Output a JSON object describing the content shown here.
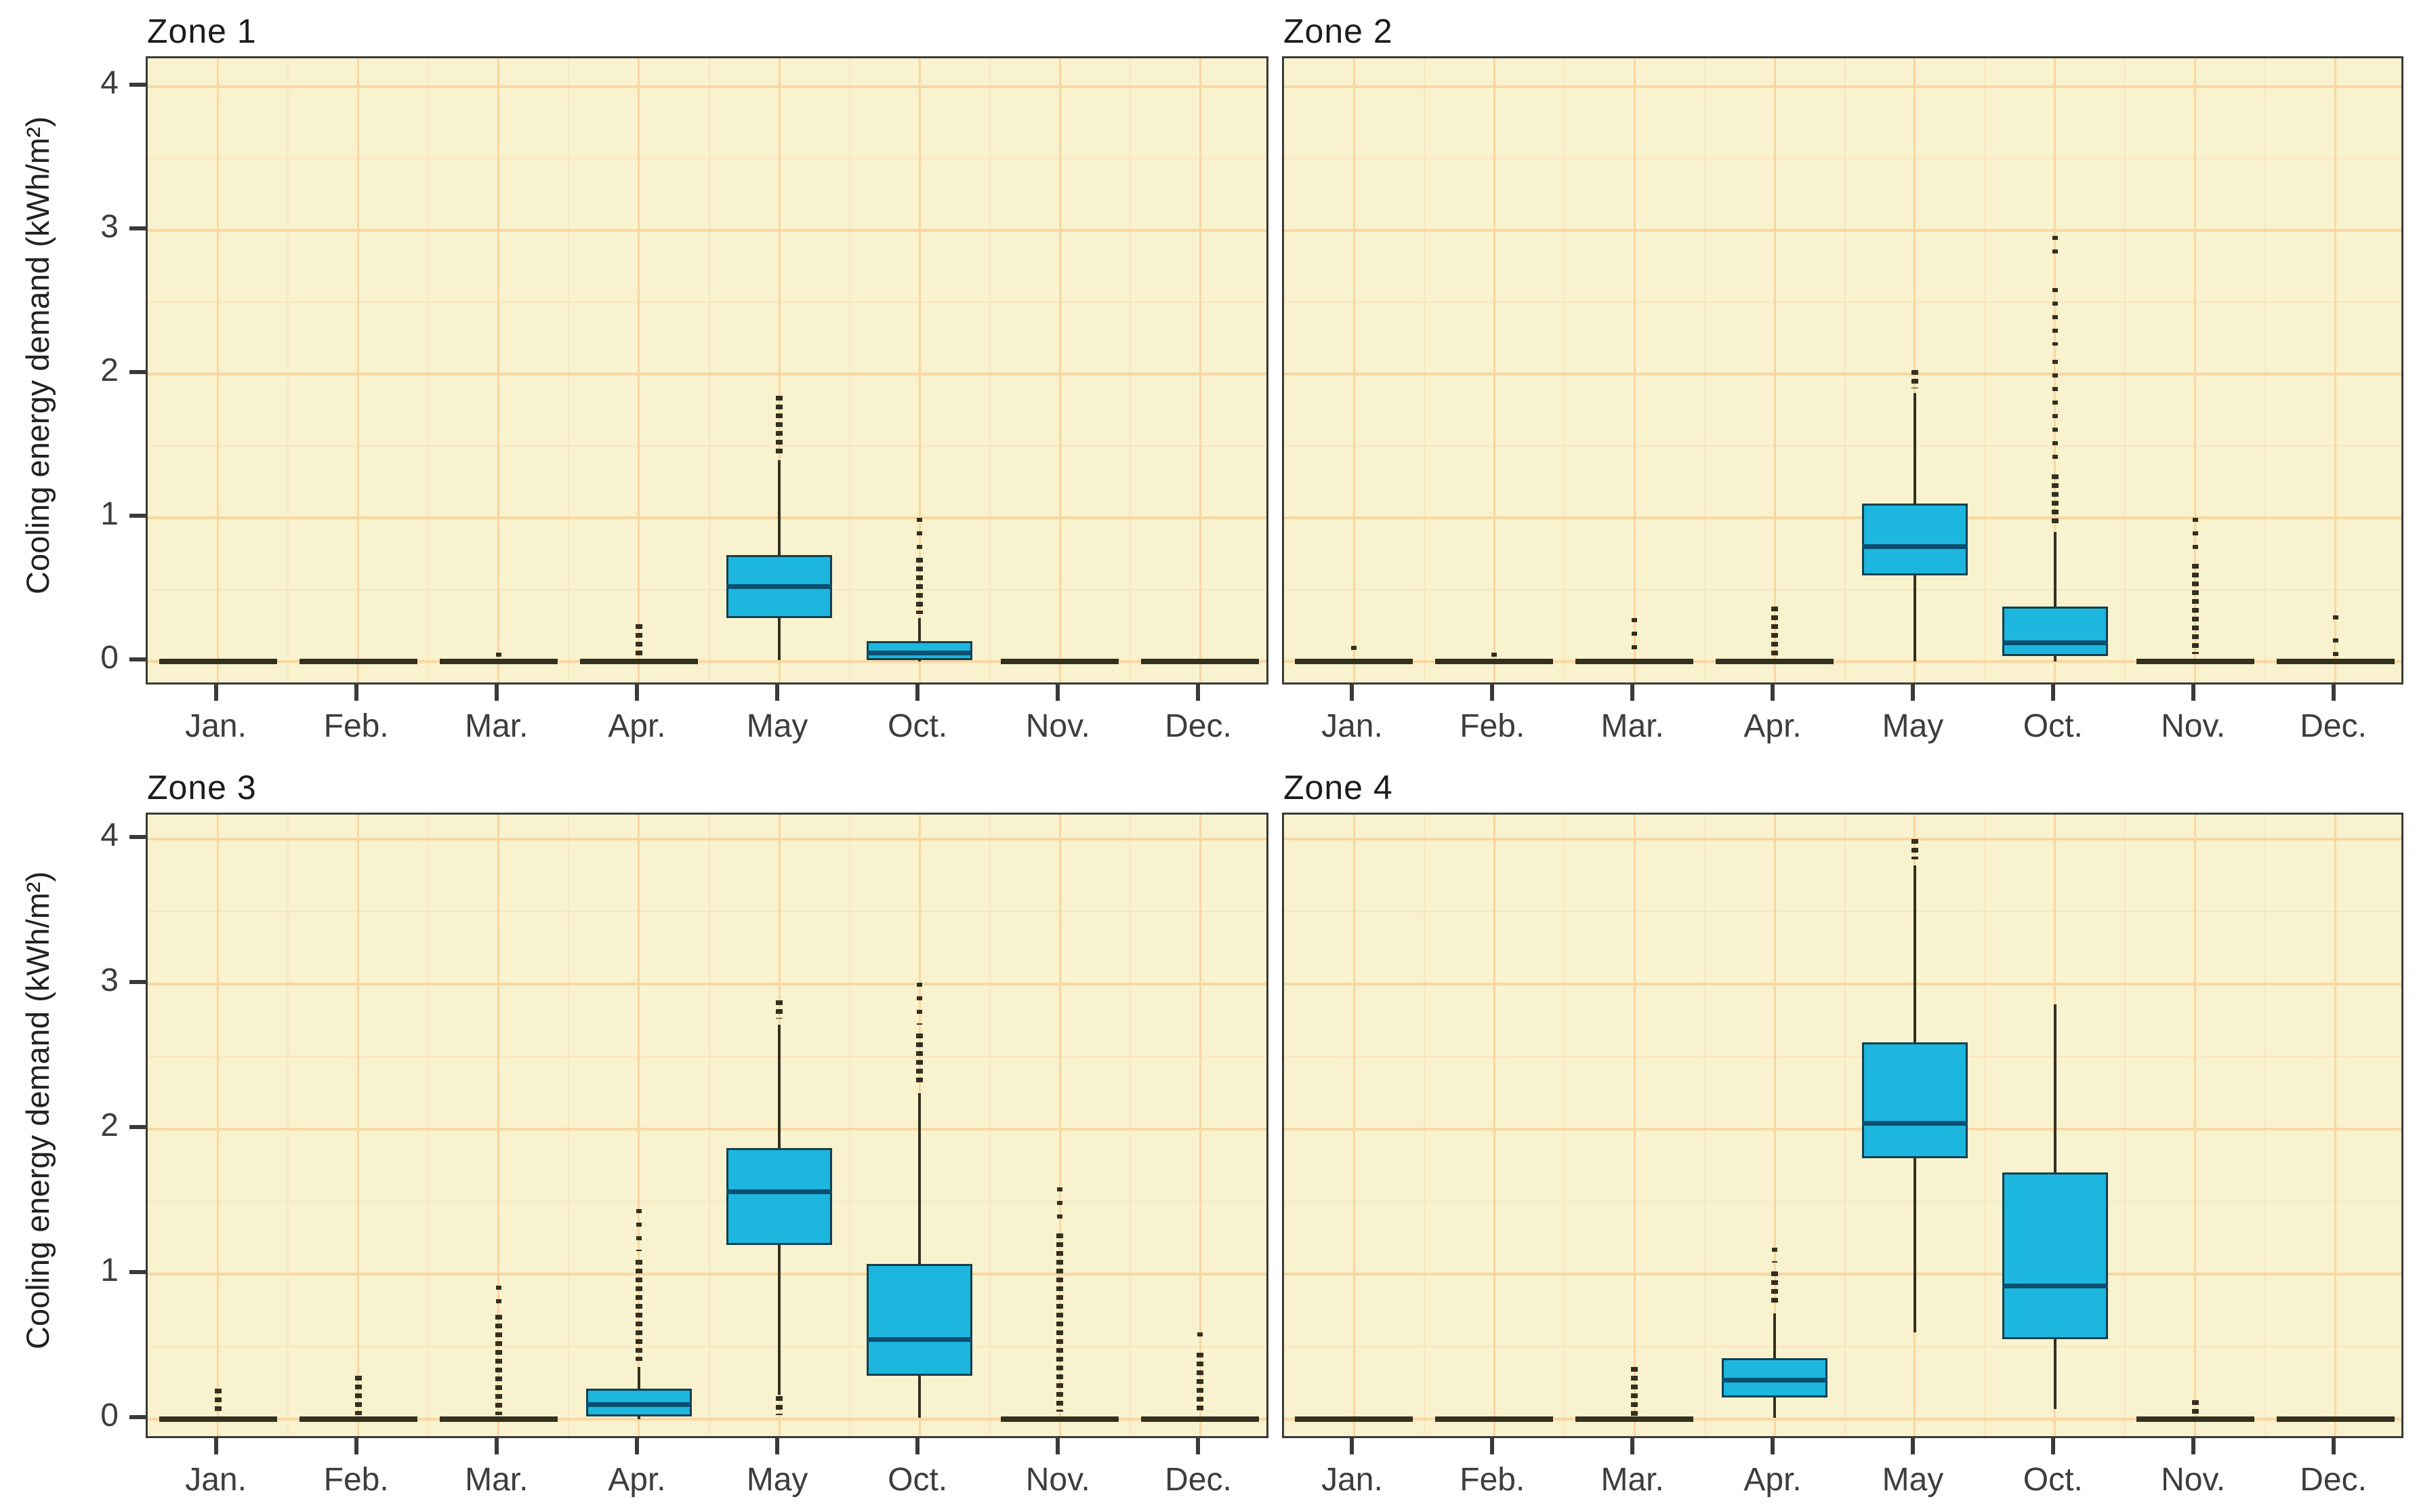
{
  "figure": {
    "background": "#ffffff"
  },
  "colors": {
    "panel_bg": "#F8F2CE",
    "grid_major": "#FAD6A0",
    "grid_minor": "#FBE6C2",
    "panel_border": "#3a3a3a",
    "box_fill": "#1CB6DE",
    "box_border": "#12404F",
    "median": "#0A4E70",
    "whisker": "#33301F",
    "tick_text": "#3d3d3d",
    "title_text": "#1c1c1c"
  },
  "chart_data": {
    "type": "boxplot",
    "layout": {
      "facets": 4,
      "grid": true,
      "legend": false,
      "facet_arrangement": "2x2"
    },
    "ylabel": "Cooling energy demand (kWh/m²)",
    "xlabel": "",
    "ylim": [
      -0.2,
      4.2
    ],
    "y_ticks": [
      "0",
      "1",
      "2",
      "3",
      "4"
    ],
    "y_tick_values": [
      0,
      1,
      2,
      3,
      4
    ],
    "categories": [
      "Jan.",
      "Feb.",
      "Mar.",
      "Apr.",
      "May",
      "Oct.",
      "Nov.",
      "Dec."
    ],
    "panels": [
      {
        "title": "Zone 1",
        "months": [
          {
            "q1": 0,
            "med": 0,
            "q3": 0,
            "lo": 0,
            "hi": 0,
            "fliers": []
          },
          {
            "q1": 0,
            "med": 0,
            "q3": 0,
            "lo": 0,
            "hi": 0,
            "fliers": []
          },
          {
            "q1": 0,
            "med": 0,
            "q3": 0,
            "lo": 0,
            "hi": 0,
            "fliers": [
              [
                0.02,
                0.06,
                "dots"
              ]
            ]
          },
          {
            "q1": 0,
            "med": 0,
            "q3": 0,
            "lo": 0,
            "hi": 0,
            "fliers": [
              [
                0.03,
                0.26,
                "dense"
              ]
            ]
          },
          {
            "q1": 0.3,
            "med": 0.52,
            "q3": 0.74,
            "lo": 0.01,
            "hi": 1.4,
            "fliers": [
              [
                1.43,
                1.85,
                "dense"
              ]
            ]
          },
          {
            "q1": 0.01,
            "med": 0.06,
            "q3": 0.14,
            "lo": 0,
            "hi": 0.3,
            "fliers": [
              [
                0.33,
                0.72,
                "dense"
              ],
              [
                0.78,
                1.0,
                "dots"
              ]
            ]
          },
          {
            "q1": 0,
            "med": 0,
            "q3": 0,
            "lo": 0,
            "hi": 0,
            "fliers": []
          },
          {
            "q1": 0,
            "med": 0,
            "q3": 0,
            "lo": 0,
            "hi": 0,
            "fliers": []
          }
        ]
      },
      {
        "title": "Zone 2",
        "months": [
          {
            "q1": 0,
            "med": 0,
            "q3": 0,
            "lo": 0,
            "hi": 0,
            "fliers": [
              [
                0.02,
                0.11,
                "dots"
              ]
            ]
          },
          {
            "q1": 0,
            "med": 0,
            "q3": 0,
            "lo": 0,
            "hi": 0,
            "fliers": [
              [
                0.02,
                0.06,
                "dots"
              ]
            ]
          },
          {
            "q1": 0,
            "med": 0,
            "q3": 0,
            "lo": 0,
            "hi": 0,
            "fliers": [
              [
                0.03,
                0.3,
                "dots"
              ]
            ]
          },
          {
            "q1": 0,
            "med": 0,
            "q3": 0,
            "lo": 0,
            "hi": 0,
            "fliers": [
              [
                0.02,
                0.38,
                "dense"
              ]
            ]
          },
          {
            "q1": 0.6,
            "med": 0.8,
            "q3": 1.1,
            "lo": 0.0,
            "hi": 1.87,
            "fliers": [
              [
                1.9,
                2.03,
                "dense"
              ]
            ]
          },
          {
            "q1": 0.04,
            "med": 0.13,
            "q3": 0.38,
            "lo": 0.0,
            "hi": 0.9,
            "fliers": [
              [
                0.94,
                1.3,
                "dense"
              ],
              [
                1.38,
                2.1,
                "dots"
              ],
              [
                2.2,
                2.6,
                "dots"
              ],
              [
                2.8,
                2.96,
                "dots"
              ]
            ]
          },
          {
            "q1": 0,
            "med": 0,
            "q3": 0,
            "lo": 0,
            "hi": 0,
            "fliers": [
              [
                0.05,
                0.68,
                "dense"
              ],
              [
                0.75,
                1.0,
                "dots"
              ]
            ]
          },
          {
            "q1": 0,
            "med": 0,
            "q3": 0,
            "lo": 0,
            "hi": 0,
            "fliers": [
              [
                0.04,
                0.16,
                "dots"
              ],
              [
                0.26,
                0.32,
                "dots"
              ]
            ]
          }
        ]
      },
      {
        "title": "Zone 3",
        "months": [
          {
            "q1": 0,
            "med": 0,
            "q3": 0,
            "lo": 0,
            "hi": 0,
            "fliers": [
              [
                0.03,
                0.21,
                "dense"
              ]
            ]
          },
          {
            "q1": 0,
            "med": 0,
            "q3": 0,
            "lo": 0,
            "hi": 0,
            "fliers": [
              [
                0.03,
                0.3,
                "dense"
              ]
            ]
          },
          {
            "q1": 0,
            "med": 0,
            "q3": 0,
            "lo": 0,
            "hi": 0,
            "fliers": [
              [
                0.03,
                0.72,
                "dense"
              ],
              [
                0.78,
                0.92,
                "dots"
              ]
            ]
          },
          {
            "q1": 0.02,
            "med": 0.1,
            "q3": 0.21,
            "lo": 0,
            "hi": 0.36,
            "fliers": [
              [
                0.4,
                1.1,
                "dense"
              ],
              [
                1.16,
                1.45,
                "dots"
              ]
            ]
          },
          {
            "q1": 1.2,
            "med": 1.57,
            "q3": 1.87,
            "lo": 0.17,
            "hi": 2.72,
            "fliers": [
              [
                0.03,
                0.16,
                "dense"
              ],
              [
                2.76,
                2.89,
                "dense"
              ]
            ]
          },
          {
            "q1": 0.3,
            "med": 0.55,
            "q3": 1.07,
            "lo": 0.01,
            "hi": 2.25,
            "fliers": [
              [
                2.3,
                2.66,
                "dense"
              ],
              [
                2.72,
                3.01,
                "dots"
              ]
            ]
          },
          {
            "q1": 0,
            "med": 0,
            "q3": 0,
            "lo": 0,
            "hi": 0,
            "fliers": [
              [
                0.05,
                1.28,
                "dense"
              ],
              [
                1.34,
                1.6,
                "dots"
              ]
            ]
          },
          {
            "q1": 0,
            "med": 0,
            "q3": 0,
            "lo": 0,
            "hi": 0,
            "fliers": [
              [
                0.04,
                0.46,
                "dense"
              ],
              [
                0.52,
                0.6,
                "dots"
              ]
            ]
          }
        ]
      },
      {
        "title": "Zone 4",
        "months": [
          {
            "q1": 0,
            "med": 0,
            "q3": 0,
            "lo": 0,
            "hi": 0,
            "fliers": []
          },
          {
            "q1": 0,
            "med": 0,
            "q3": 0,
            "lo": 0,
            "hi": 0,
            "fliers": []
          },
          {
            "q1": 0,
            "med": 0,
            "q3": 0,
            "lo": 0,
            "hi": 0,
            "fliers": [
              [
                0.02,
                0.36,
                "dense"
              ]
            ]
          },
          {
            "q1": 0.15,
            "med": 0.27,
            "q3": 0.42,
            "lo": 0.01,
            "hi": 0.73,
            "fliers": [
              [
                0.78,
                1.02,
                "dense"
              ],
              [
                1.08,
                1.18,
                "dots"
              ]
            ]
          },
          {
            "q1": 1.8,
            "med": 2.04,
            "q3": 2.6,
            "lo": 0.6,
            "hi": 3.82,
            "fliers": [
              [
                3.86,
                4.0,
                "dense"
              ]
            ]
          },
          {
            "q1": 0.55,
            "med": 0.92,
            "q3": 1.7,
            "lo": 0.07,
            "hi": 2.86,
            "fliers": []
          },
          {
            "q1": 0,
            "med": 0,
            "q3": 0,
            "lo": 0,
            "hi": 0,
            "fliers": [
              [
                0.02,
                0.13,
                "dense"
              ]
            ]
          },
          {
            "q1": 0,
            "med": 0,
            "q3": 0,
            "lo": 0,
            "hi": 0,
            "fliers": []
          }
        ]
      }
    ]
  }
}
